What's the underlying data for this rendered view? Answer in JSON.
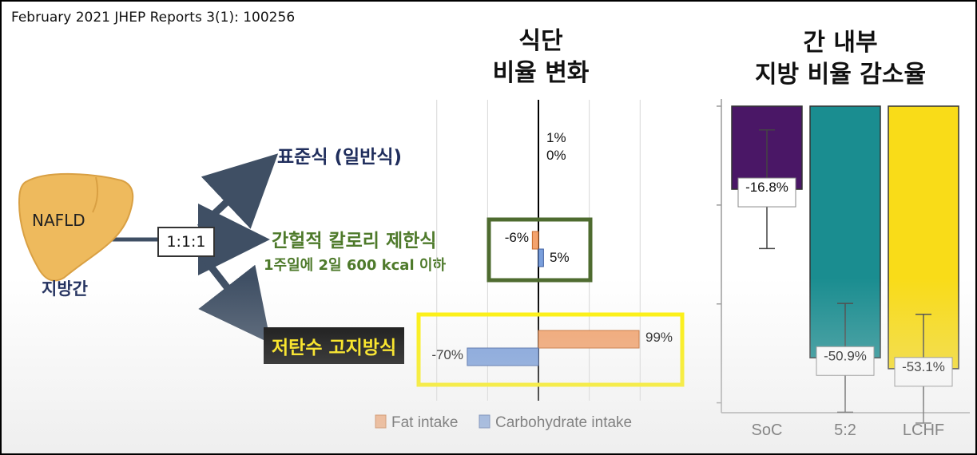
{
  "citation": "February 2021 JHEP Reports 3(1): 100256",
  "diet_title": [
    "식단",
    "비율 변화"
  ],
  "fat_title": [
    "간 내부",
    "지방 비율 감소율"
  ],
  "liver": {
    "label": "NAFLD",
    "sub": "지방간",
    "color": "#eeba5d"
  },
  "ratio": "1:1:1",
  "arms": {
    "soc": "표준식 (일반식)",
    "ief": "간헐적 칼로리 제한식",
    "ief_sub": "1주일에 2일 600 kcal 이하",
    "lchf": "저탄수 고지방식"
  },
  "colors": {
    "fat": "#f4a36d",
    "carb": "#7a9fdc",
    "green_box": "#4e6b2f",
    "yellow_box": "#fff200",
    "soc_bar": "#4a1766",
    "ief_bar": "#1a8d90",
    "lchf_bar": "#f9dc18"
  },
  "chart_data": [
    {
      "type": "bar",
      "orientation": "horizontal",
      "categories": [
        "표준식 (일반식)",
        "간헐적 칼로리 제한식",
        "저탄수 고지방식"
      ],
      "series": [
        {
          "name": "Fat intake",
          "values": [
            1,
            -6,
            99
          ],
          "labels": [
            "1%",
            "-6%",
            "99%"
          ]
        },
        {
          "name": "Carbohydrate intake",
          "values": [
            0,
            5,
            -70
          ],
          "labels": [
            "0%",
            "5%",
            "-70%"
          ]
        }
      ],
      "legend": [
        "Fat intake",
        "Carbohydrate intake"
      ],
      "xlim": [
        -120,
        120
      ],
      "grid": true
    },
    {
      "type": "bar",
      "categories": [
        "SoC",
        "5:2",
        "LCHF"
      ],
      "values": [
        -16.8,
        -50.9,
        -53.1
      ],
      "value_labels": [
        "-16.8%",
        "-50.9%",
        "-53.1%"
      ],
      "error": [
        12,
        11,
        11
      ],
      "ylim": [
        -62,
        0
      ],
      "grid": true
    }
  ]
}
